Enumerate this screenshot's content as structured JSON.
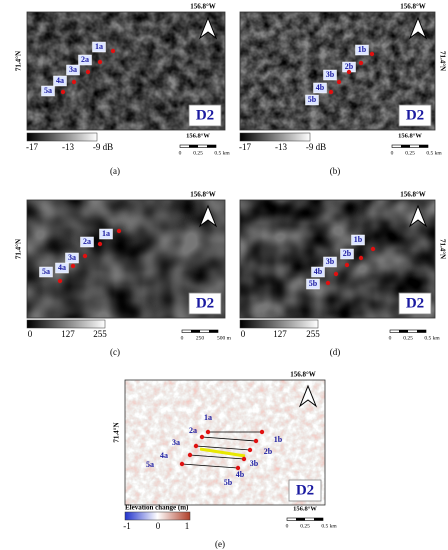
{
  "panels": [
    {
      "label": "(a)",
      "top_longitude": "156.8°W",
      "side_latitude": "71.4°N",
      "bottom_longitude": "156.8°W",
      "site": "D2",
      "points": [
        "1a",
        "2a",
        "3a",
        "4a",
        "5a"
      ],
      "colorbar_ticks": [
        "-17",
        "-13",
        "-9 dB"
      ],
      "scale_bar": [
        "0",
        "0.25",
        "0.5 km"
      ]
    },
    {
      "label": "(b)",
      "top_longitude": "156.8°W",
      "side_latitude": "71.4°N",
      "bottom_longitude": "156.8°W",
      "site": "D2",
      "points": [
        "1b",
        "2b",
        "3b",
        "4b",
        "5b"
      ],
      "colorbar_ticks": [
        "-17",
        "-13",
        "-9 dB"
      ],
      "scale_bar": [
        "0",
        "0.25",
        "0.5 km"
      ]
    },
    {
      "label": "(c)",
      "top_longitude": "156.8°W",
      "side_latitude": "71.4°N",
      "site": "D2",
      "points": [
        "1a",
        "2a",
        "3a",
        "4a",
        "5a"
      ],
      "colorbar_ticks": [
        "0",
        "127",
        "255"
      ],
      "scale_bar": [
        "0",
        "250",
        "500 m"
      ]
    },
    {
      "label": "(d)",
      "top_longitude": "156.8°W",
      "side_latitude": "71.4°N",
      "site": "D2",
      "points": [
        "1b",
        "2b",
        "3b",
        "4b",
        "5b"
      ],
      "colorbar_ticks": [
        "0",
        "127",
        "255"
      ],
      "scale_bar": [
        "0",
        "0.25",
        "0.5 km"
      ]
    },
    {
      "label": "(e)",
      "top_longitude": "156.8°W",
      "side_latitude": "71.4°N",
      "bottom_longitude": "156.8°W",
      "site": "D2",
      "points": [
        "1a",
        "2a",
        "3a",
        "4a",
        "5a",
        "1b",
        "2b",
        "3b",
        "4b",
        "5b"
      ],
      "colorbar_title": "Elevation change (m)",
      "colorbar_ticks": [
        "-1",
        "0",
        "1"
      ],
      "scale_bar": [
        "0",
        "0.25",
        "0.5 km"
      ]
    }
  ]
}
